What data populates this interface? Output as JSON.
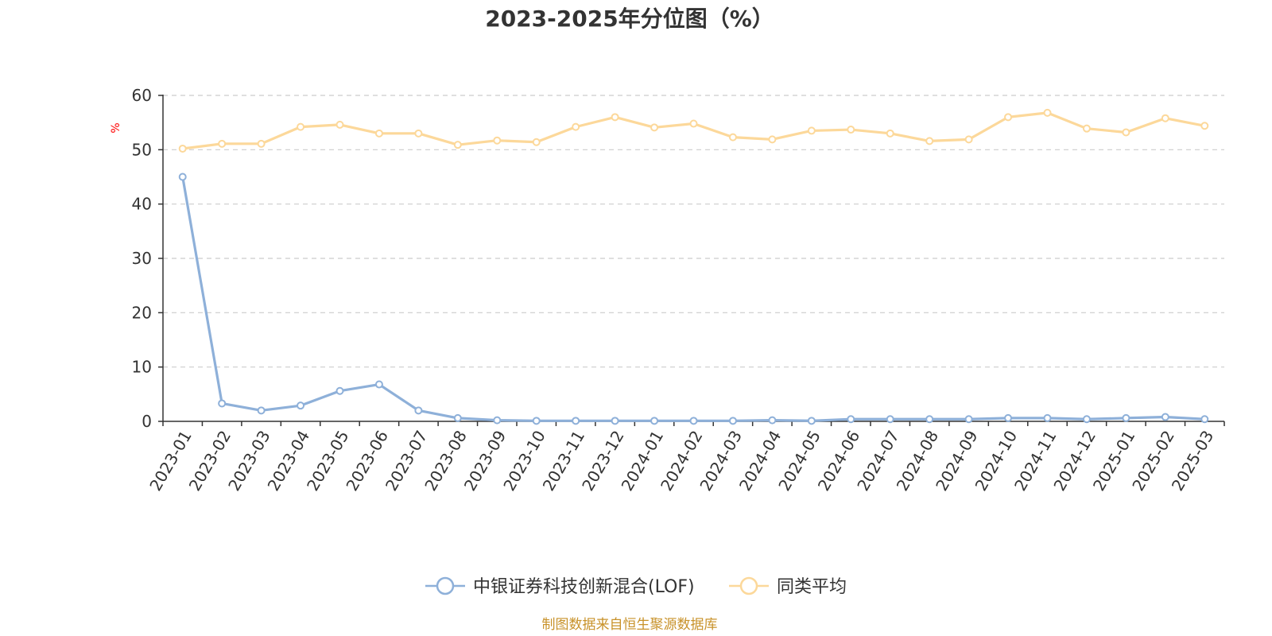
{
  "chart_data": {
    "type": "line",
    "title": "2023-2025年分位图（%）",
    "ylabel": "%",
    "ylim": [
      0,
      60
    ],
    "yticks": [
      0,
      10,
      20,
      30,
      40,
      50,
      60
    ],
    "grid": true,
    "legend_position": "bottom",
    "categories": [
      "2023-01",
      "2023-02",
      "2023-03",
      "2023-04",
      "2023-05",
      "2023-06",
      "2023-07",
      "2023-08",
      "2023-09",
      "2023-10",
      "2023-11",
      "2023-12",
      "2024-01",
      "2024-02",
      "2024-03",
      "2024-04",
      "2024-05",
      "2024-06",
      "2024-07",
      "2024-08",
      "2024-09",
      "2024-10",
      "2024-11",
      "2024-12",
      "2025-01",
      "2025-02",
      "2025-03"
    ],
    "series": [
      {
        "name": "中银证券科技创新混合(LOF)",
        "color": "#8eb0d9",
        "values": [
          45.0,
          3.3,
          2.0,
          2.9,
          5.6,
          6.8,
          2.0,
          0.6,
          0.2,
          0.1,
          0.1,
          0.1,
          0.1,
          0.1,
          0.1,
          0.2,
          0.1,
          0.4,
          0.4,
          0.4,
          0.4,
          0.6,
          0.6,
          0.4,
          0.6,
          0.8,
          0.4
        ]
      },
      {
        "name": "同类平均",
        "color": "#fcd89a",
        "values": [
          50.2,
          51.1,
          51.1,
          54.2,
          54.6,
          53.0,
          53.0,
          50.9,
          51.7,
          51.4,
          54.2,
          56.0,
          54.1,
          54.8,
          52.3,
          51.9,
          53.5,
          53.7,
          53.0,
          51.6,
          51.9,
          56.0,
          56.8,
          53.9,
          53.2,
          55.8,
          54.4
        ]
      }
    ]
  },
  "source_note": "制图数据来自恒生聚源数据库"
}
